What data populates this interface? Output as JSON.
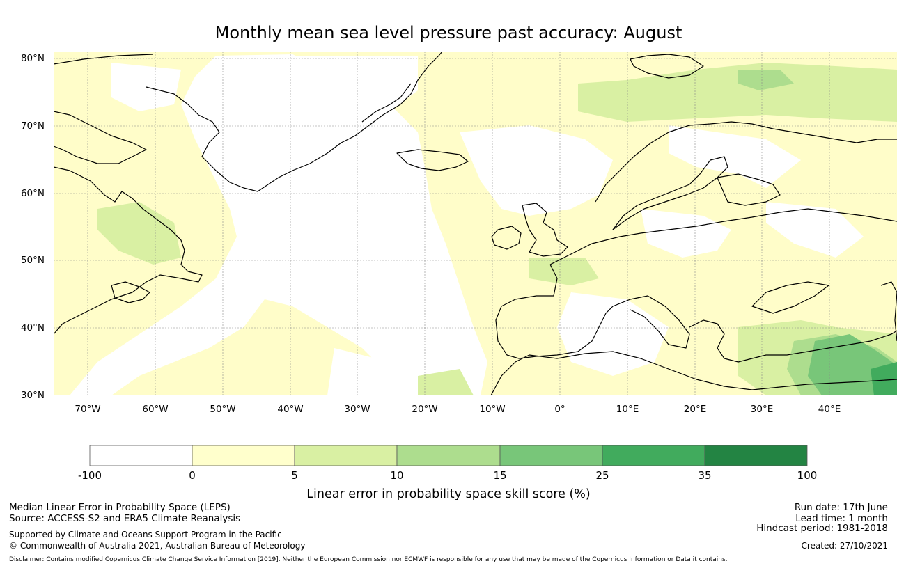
{
  "title": "Monthly mean sea level pressure past accuracy: August",
  "map": {
    "lat_range": [
      30,
      81
    ],
    "lon_range": [
      -75,
      50
    ],
    "lat_ticks": [
      "80°N",
      "70°N",
      "60°N",
      "50°N",
      "40°N",
      "30°N"
    ],
    "lon_ticks": [
      "70°W",
      "60°W",
      "50°W",
      "40°W",
      "30°W",
      "20°W",
      "10°W",
      "0°",
      "10°E",
      "20°E",
      "30°E",
      "40°E"
    ],
    "gridlines": true,
    "background_color": "#fffdc9"
  },
  "colorbar": {
    "labels": [
      "-100",
      "0",
      "5",
      "10",
      "15",
      "25",
      "35",
      "100"
    ],
    "colors": [
      "#ffffff",
      "#ffffcc",
      "#d9f0a3",
      "#addd8e",
      "#78c679",
      "#41ab5d",
      "#238443"
    ],
    "title": "Linear error in probability space skill score (%)"
  },
  "footer": {
    "line1": "Median Linear Error in Probability Space (LEPS)",
    "line2": "Source: ACCESS-S2 and ERA5 Climate Reanalysis",
    "line3": "Supported by Climate and Oceans Support Program in the Pacific",
    "line4": "© Commonwealth of Australia 2021, Australian Bureau of Meteorology",
    "run_date": "Run date: 17th June",
    "lead_time": "Lead time: 1 month",
    "hindcast": "Hindcast period: 1981-2018",
    "created": "Created: 27/10/2021",
    "disclaimer": "Disclaimer: Contains modified Copernicus Climate Change Service Information [2019]. Neither the European Commission nor ECMWF is responsible for any use that may be made of the Copernicus Information or Data it contains."
  }
}
